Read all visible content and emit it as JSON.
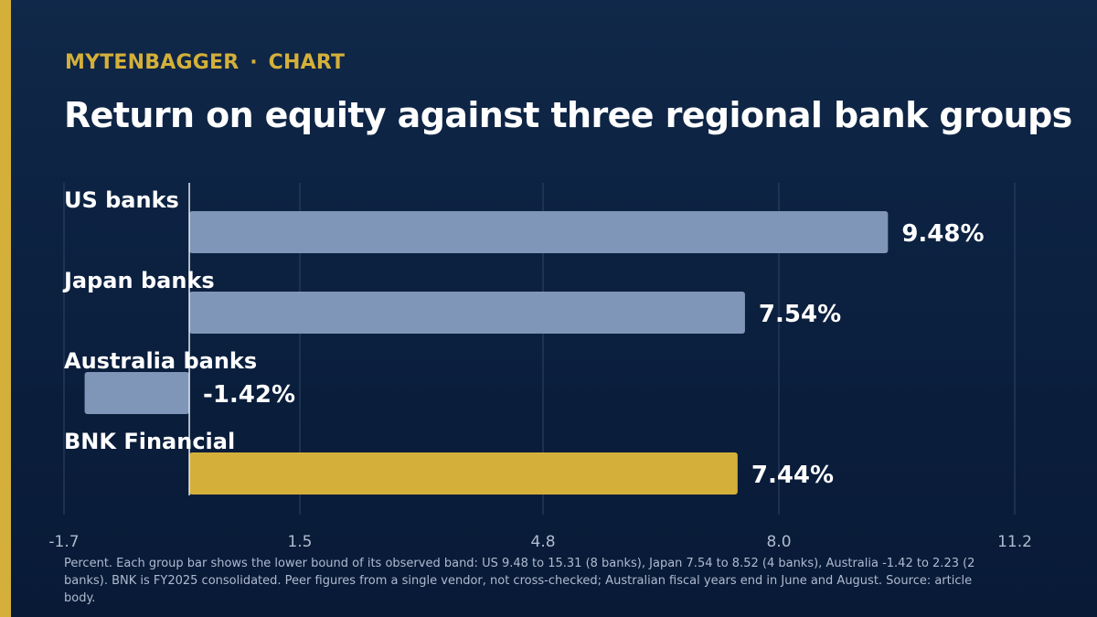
{
  "brand": {
    "name": "MYTENBAGGER",
    "separator": "·",
    "section": "CHART"
  },
  "colors": {
    "background": "#0b1f3e",
    "accent": "#d4b03a",
    "peer_bar": "#7f96b8",
    "highlight_bar": "#d4b03a",
    "text": "#ffffff",
    "muted_text": "#aebbd0",
    "grid": "#2f4566"
  },
  "chart_data": {
    "type": "bar",
    "orientation": "horizontal",
    "title": "Return on equity against three regional bank groups",
    "categories": [
      "US banks",
      "Japan banks",
      "Australia banks",
      "BNK Financial"
    ],
    "values": [
      9.48,
      7.54,
      -1.42,
      7.44
    ],
    "value_labels": [
      "9.48%",
      "7.54%",
      "-1.42%",
      "7.44%"
    ],
    "highlight": "BNK Financial",
    "xlim": [
      -1.7,
      11.2
    ],
    "xticks": [
      -1.7,
      1.5,
      4.8,
      8.0,
      11.2
    ],
    "xtick_labels": [
      "-1.7",
      "1.5",
      "4.8",
      "8.0",
      "11.2"
    ],
    "grid": true,
    "zero_line": true,
    "xlabel": "",
    "ylabel": ""
  },
  "footnote": "Percent. Each group bar shows the lower bound of its observed band: US 9.48 to 15.31 (8 banks), Japan 7.54 to 8.52 (4 banks), Australia -1.42 to 2.23 (2 banks). BNK is FY2025 consolidated. Peer figures from a single vendor, not cross-checked; Australian fiscal years end in June and August. Source: article body."
}
